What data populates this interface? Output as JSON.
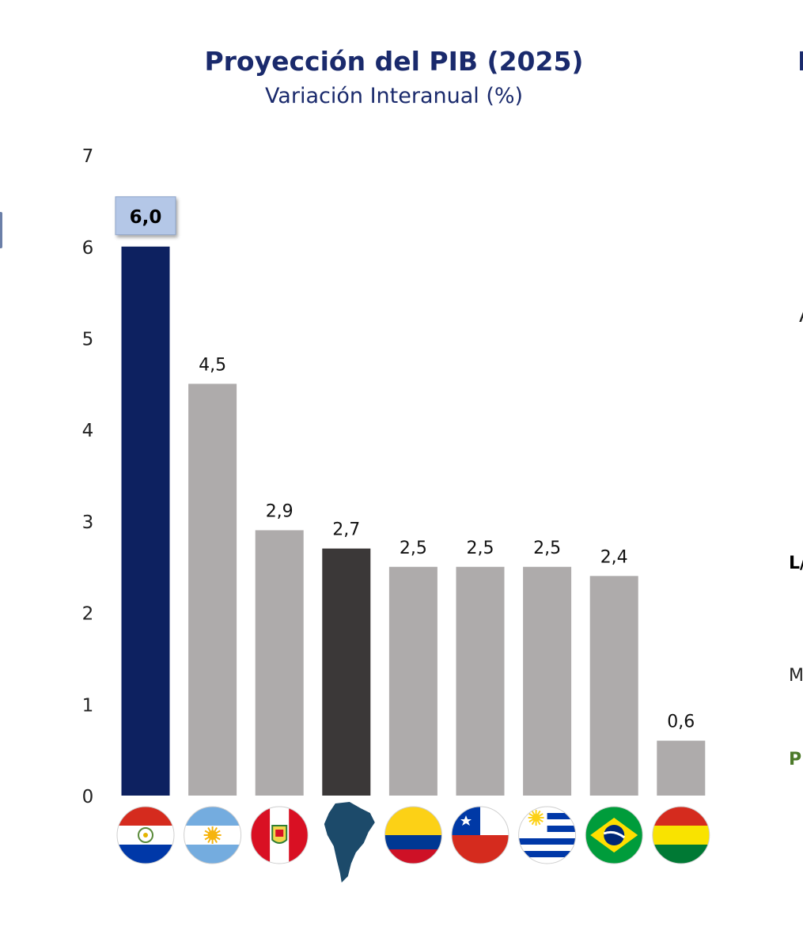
{
  "chart_data": {
    "type": "bar",
    "title": "Proyección del PIB (2025)",
    "subtitle": "Variación Interanual (%)",
    "xlabel": "",
    "ylabel": "",
    "ylim": [
      0,
      7
    ],
    "yticks": [
      "0",
      "1",
      "2",
      "3",
      "4",
      "5",
      "6",
      "7"
    ],
    "categories": [
      "Paraguay",
      "Argentina",
      "Perú",
      "Sudamérica",
      "Colombia",
      "Chile",
      "Uruguay",
      "Brasil",
      "Bolivia"
    ],
    "values": [
      6.0,
      4.5,
      2.9,
      2.7,
      2.5,
      2.5,
      2.5,
      2.4,
      0.6
    ],
    "value_labels": [
      "6,0",
      "4,5",
      "2,9",
      "2,7",
      "2,5",
      "2,5",
      "2,5",
      "2,4",
      "0,6"
    ],
    "bar_colors": [
      "#0d2160",
      "#aeabab",
      "#aeabab",
      "#3b3838",
      "#aeabab",
      "#aeabab",
      "#aeabab",
      "#aeabab",
      "#aeabab"
    ],
    "highlight_index": 0,
    "highlight_box_color": "#b4c7e7",
    "flag_icons": [
      "paraguay-flag-icon",
      "argentina-flag-icon",
      "peru-flag-icon",
      "south-america-map-icon",
      "colombia-flag-icon",
      "chile-flag-icon",
      "uruguay-flag-icon",
      "brazil-flag-icon",
      "bolivia-flag-icon"
    ],
    "grid": false,
    "legend": "none"
  },
  "edge_fragments": {
    "title": "I",
    "a": "A",
    "l": "L/",
    "m": "M",
    "p": "P"
  }
}
